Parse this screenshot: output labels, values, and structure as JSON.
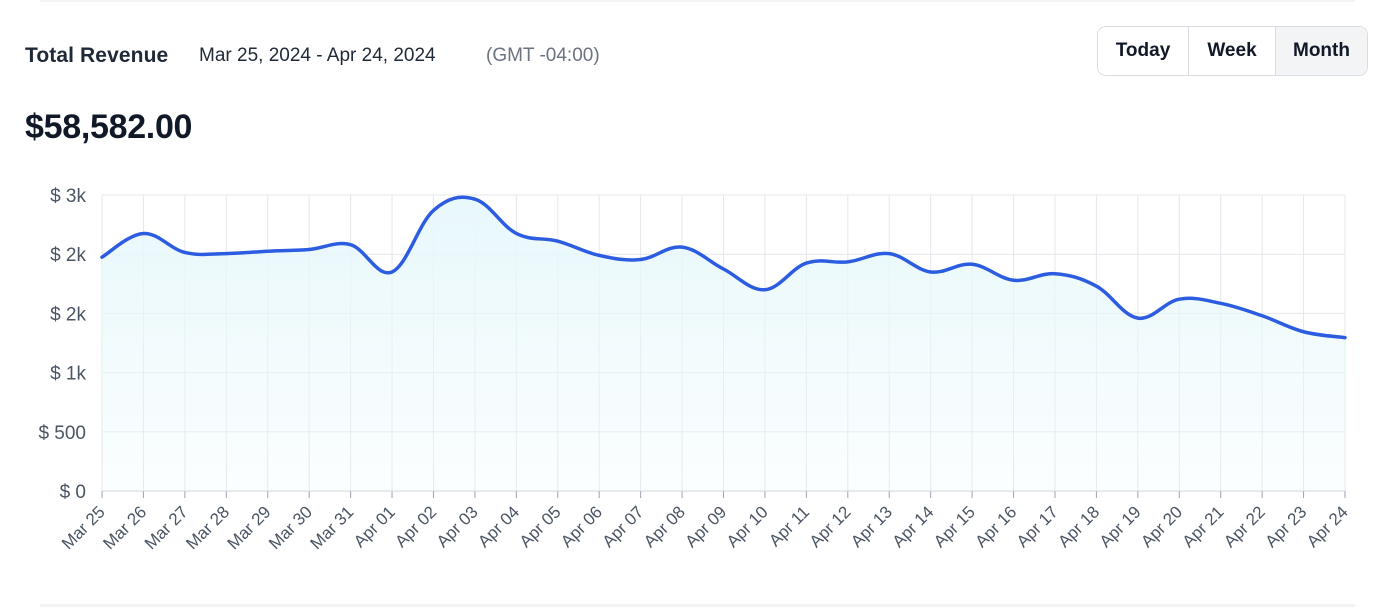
{
  "header": {
    "title": "Total Revenue",
    "date_range": "Mar 25, 2024 - Apr 24, 2024",
    "timezone": "(GMT -04:00)",
    "total": "$58,582.00"
  },
  "range_selector": {
    "options": [
      "Today",
      "Week",
      "Month"
    ],
    "selected": "Month"
  },
  "colors": {
    "line": "#2c5ce0",
    "fill": "#e8f8fb",
    "grid": "#e5e7eb"
  },
  "chart_data": {
    "type": "area",
    "title": "",
    "xlabel": "",
    "ylabel": "",
    "ylim": [
      0,
      2500
    ],
    "y_ticks": [
      0,
      500,
      1000,
      1500,
      2000,
      2500
    ],
    "y_tick_labels": [
      "$ 0",
      "$ 500",
      "$ 1k",
      "$ 2k",
      "$ 2k",
      "$ 3k"
    ],
    "grid": true,
    "x": [
      "Mar 25",
      "Mar 26",
      "Mar 27",
      "Mar 28",
      "Mar 29",
      "Mar 30",
      "Mar 31",
      "Apr 01",
      "Apr 02",
      "Apr 03",
      "Apr 04",
      "Apr 05",
      "Apr 06",
      "Apr 07",
      "Apr 08",
      "Apr 09",
      "Apr 10",
      "Apr 11",
      "Apr 12",
      "Apr 13",
      "Apr 14",
      "Apr 15",
      "Apr 16",
      "Apr 17",
      "Apr 18",
      "Apr 19",
      "Apr 20",
      "Apr 21",
      "Apr 22",
      "Apr 23",
      "Apr 24"
    ],
    "series": [
      {
        "values": [
          1975,
          2175,
          2015,
          2005,
          2025,
          2040,
          2080,
          1850,
          2370,
          2465,
          2175,
          2110,
          1990,
          1955,
          2060,
          1875,
          1700,
          1925,
          1935,
          2005,
          1850,
          1915,
          1780,
          1835,
          1730,
          1460,
          1620,
          1585,
          1480,
          1345,
          1295
        ]
      }
    ]
  }
}
